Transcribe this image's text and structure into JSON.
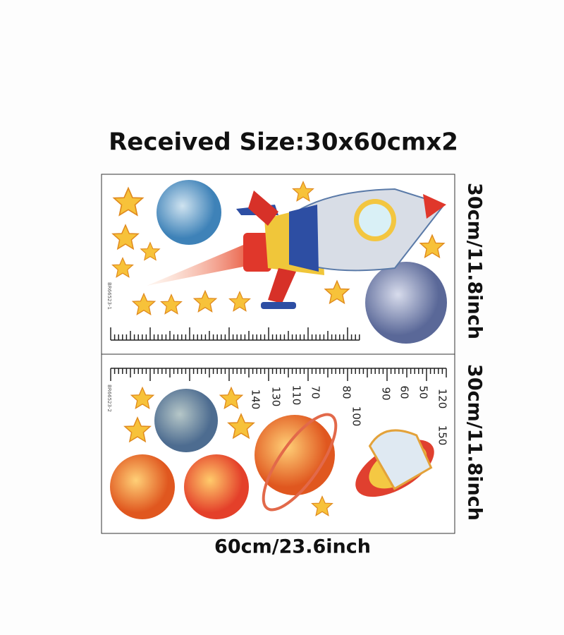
{
  "title": "Received Size:30x60cmx2",
  "panels": [
    {
      "code": "BR66523-1",
      "height_label": "30cm/11.8inch"
    },
    {
      "code": "BR66523-2",
      "height_label": "30cm/11.8inch"
    }
  ],
  "width_label": "60cm/23.6inch",
  "ruler_numbers": [
    "120",
    "150",
    "50",
    "60",
    "90",
    "100",
    "80",
    "70",
    "110",
    "130",
    "140"
  ]
}
